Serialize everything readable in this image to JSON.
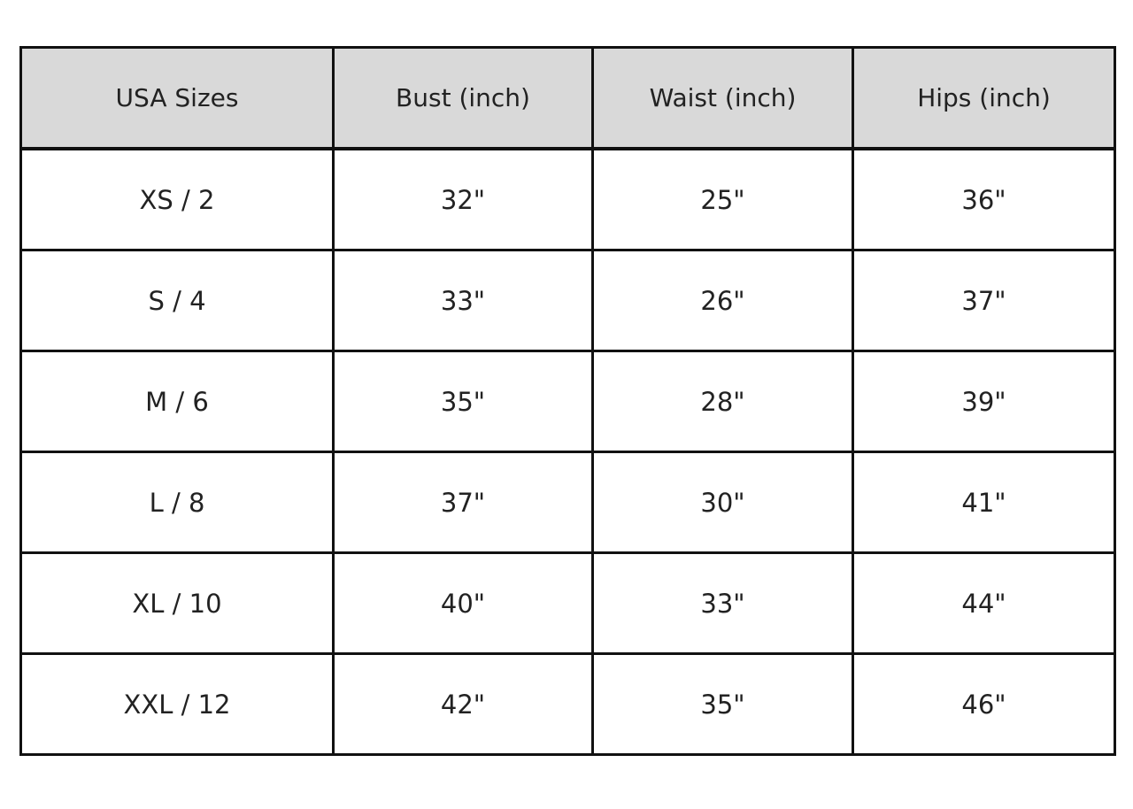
{
  "table": {
    "headers": [
      "USA Sizes",
      "Bust (inch)",
      "Waist (inch)",
      "Hips (inch)"
    ],
    "rows": [
      [
        "XS / 2",
        "32\"",
        "25\"",
        "36\""
      ],
      [
        "S / 4",
        "33\"",
        "26\"",
        "37\""
      ],
      [
        "M / 6",
        "35\"",
        "28\"",
        "39\""
      ],
      [
        "L / 8",
        "37\"",
        "30\"",
        "41\""
      ],
      [
        "XL / 10",
        "40\"",
        "33\"",
        "44\""
      ],
      [
        "XXL / 12",
        "42\"",
        "35\"",
        "46\""
      ]
    ],
    "header_bg": "#d9d9d9"
  }
}
